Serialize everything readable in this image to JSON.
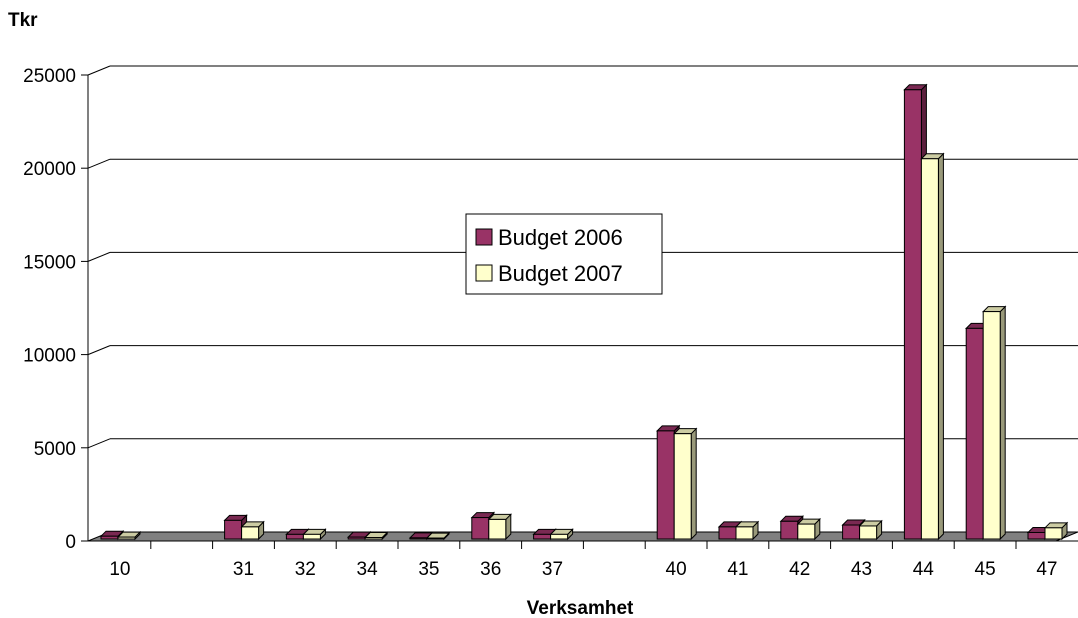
{
  "chart_data": {
    "type": "bar",
    "ylabel": "Tkr",
    "xlabel": "Verksamhet",
    "ylim": [
      0,
      25000
    ],
    "yticks": [
      0,
      5000,
      10000,
      15000,
      20000,
      25000
    ],
    "grid": true,
    "legend_position": "center",
    "categories": [
      "10",
      "",
      "31",
      "32",
      "34",
      "35",
      "36",
      "37",
      "",
      "40",
      "41",
      "42",
      "43",
      "44",
      "45",
      "47"
    ],
    "series": [
      {
        "name": "Budget 2006",
        "color": "#993366",
        "values": [
          150,
          0,
          1000,
          250,
          100,
          60,
          1150,
          250,
          0,
          5800,
          650,
          950,
          750,
          24100,
          11300,
          350
        ]
      },
      {
        "name": "Budget 2007",
        "color": "#FFFFCC",
        "values": [
          100,
          0,
          650,
          250,
          80,
          50,
          1050,
          250,
          0,
          5650,
          650,
          800,
          700,
          20400,
          12200,
          600
        ]
      }
    ]
  }
}
